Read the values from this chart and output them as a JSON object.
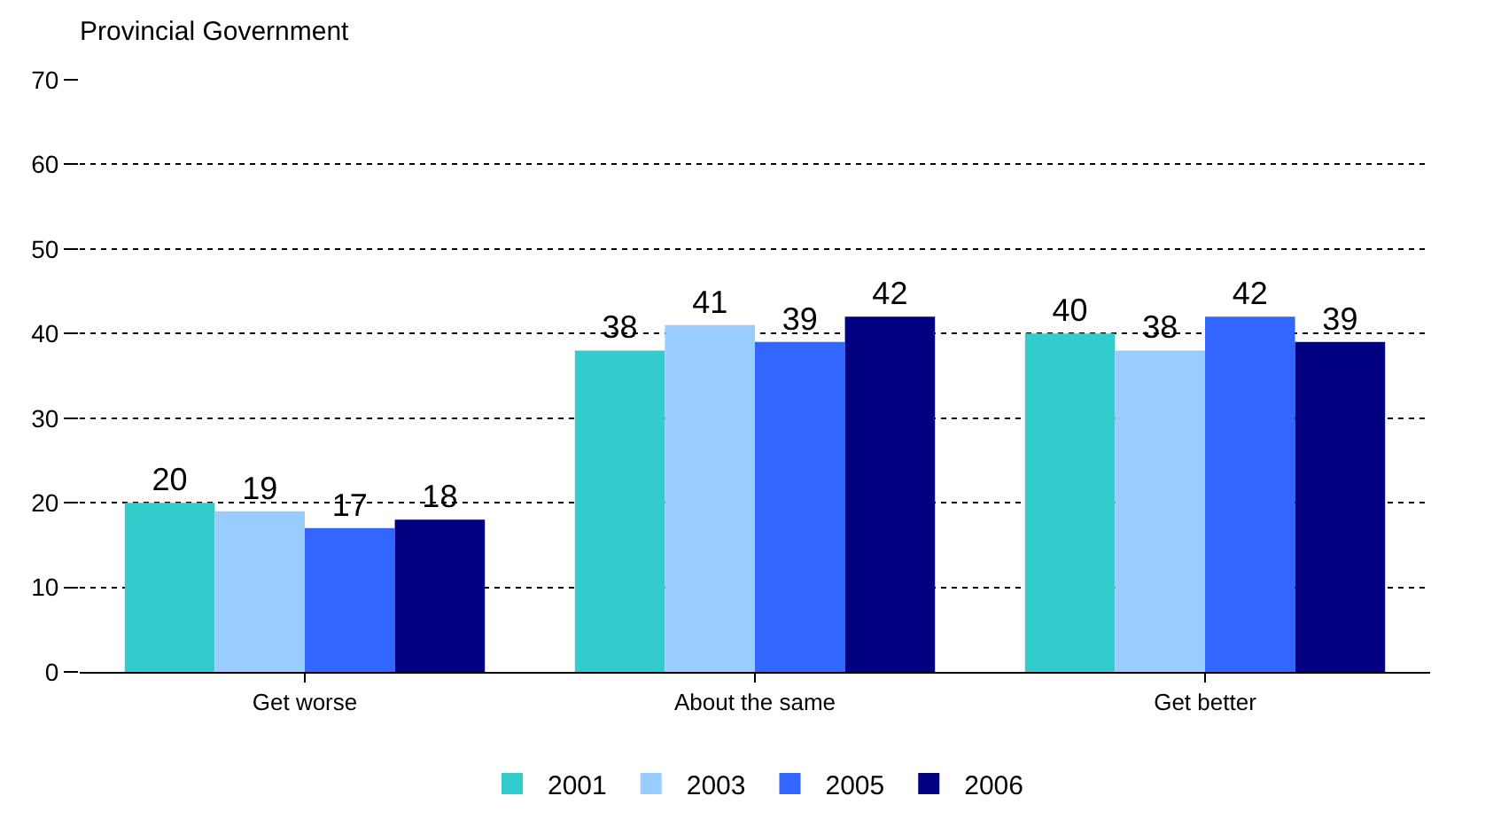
{
  "chart_data": {
    "type": "bar",
    "title": "Provincial Government",
    "categories": [
      "Get worse",
      "About the same",
      "Get better"
    ],
    "series": [
      {
        "name": "2001",
        "color": "#33cccc",
        "values": [
          20,
          38,
          40
        ]
      },
      {
        "name": "2003",
        "color": "#99ccff",
        "values": [
          19,
          41,
          38
        ]
      },
      {
        "name": "2005",
        "color": "#3366ff",
        "values": [
          17,
          39,
          42
        ]
      },
      {
        "name": "2006",
        "color": "#000080",
        "values": [
          18,
          42,
          39
        ]
      }
    ],
    "ylim": [
      0,
      70
    ],
    "yticks": [
      0,
      10,
      20,
      30,
      40,
      50,
      60,
      70
    ],
    "grid": "y",
    "legend": "bottom",
    "data_labels": true
  }
}
